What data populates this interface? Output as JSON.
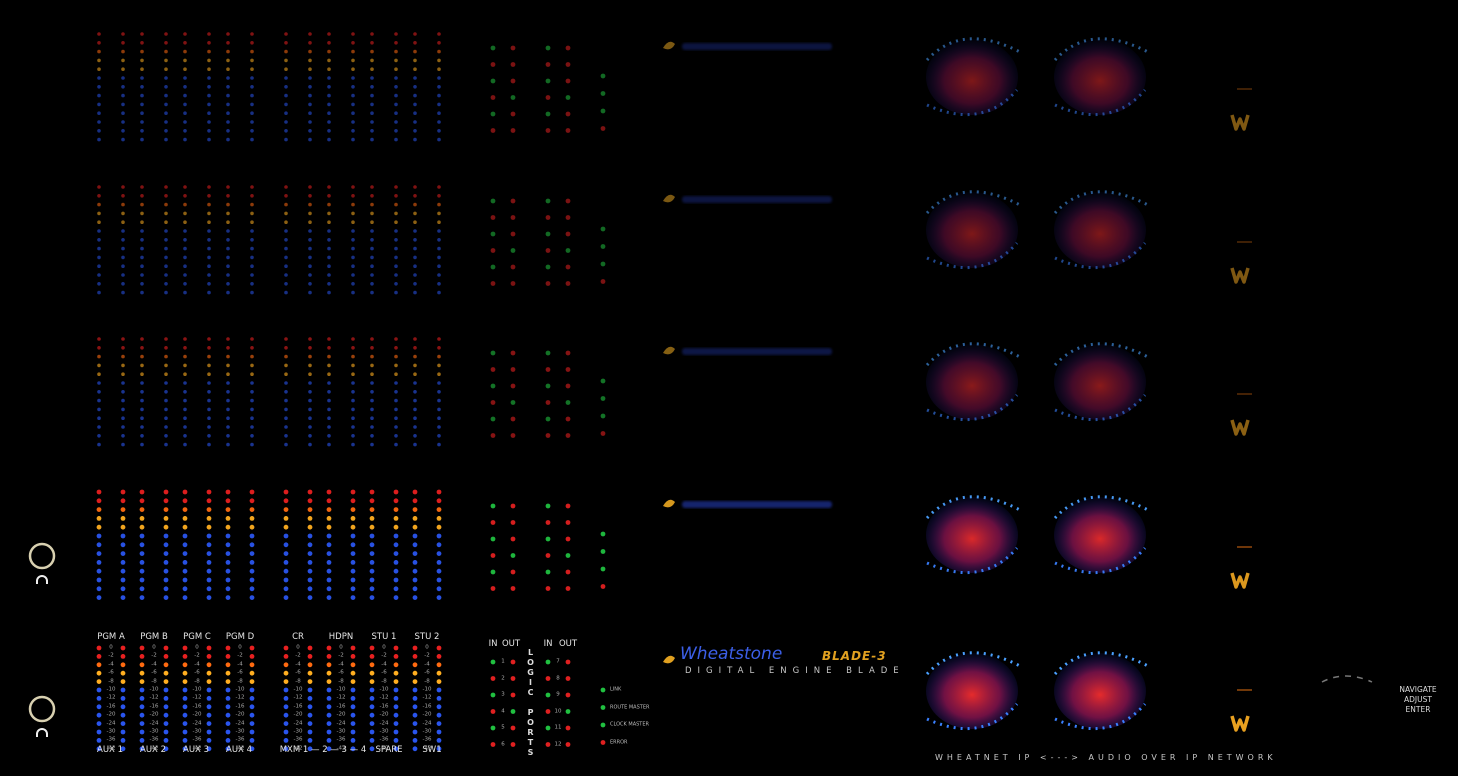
{
  "meters": {
    "top_labels": [
      "PGM A",
      "PGM B",
      "PGM C",
      "PGM D",
      "CR",
      "HDPN",
      "STU 1",
      "STU 2"
    ],
    "bottom_labels": [
      "AUX 1",
      "AUX 2",
      "AUX 3",
      "AUX 4",
      "MXM 1 — 2 — 3 — 4",
      "SPARE",
      "SW1"
    ],
    "scale": [
      "0",
      "-2",
      "-4",
      "-6",
      "-8",
      "-10",
      "-12",
      "-16",
      "-20",
      "-24",
      "-30",
      "-36",
      "-42"
    ]
  },
  "logic": {
    "headers": [
      "IN",
      "OUT",
      "IN",
      "OUT"
    ],
    "title": "LOGIC PORTS",
    "ports": [
      "1",
      "2",
      "3",
      "4",
      "5",
      "6",
      "7",
      "8",
      "9",
      "10",
      "11",
      "12"
    ]
  },
  "status": [
    "LINK",
    "ROUTE MASTER",
    "CLOCK MASTER",
    "ERROR"
  ],
  "brand": {
    "name": "Wheatstone",
    "model": "BLADE-3",
    "tagline": "DIGITAL ENGINE BLADE"
  },
  "network": "WHEATNET IP <---> AUDIO OVER IP NETWORK",
  "controls": [
    "NAVIGATE",
    "ADJUST",
    "ENTER"
  ]
}
